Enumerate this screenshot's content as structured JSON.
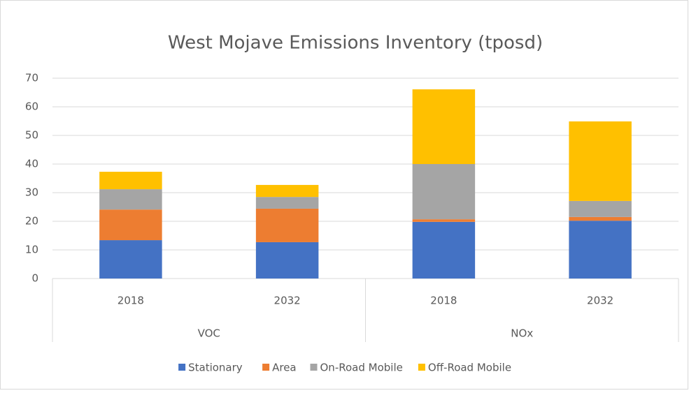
{
  "chart_data": {
    "type": "stacked_bar",
    "title": "West Mojave Emissions Inventory (tposd)",
    "groups": [
      {
        "label": "VOC",
        "categories": [
          "2018",
          "2032"
        ]
      },
      {
        "label": "NOx",
        "categories": [
          "2018",
          "2032"
        ]
      }
    ],
    "series": [
      {
        "name": "Stationary",
        "color": "#4472c4",
        "values": [
          13.4,
          12.7,
          19.8,
          20.2
        ]
      },
      {
        "name": "Area",
        "color": "#ed7d31",
        "values": [
          10.7,
          11.7,
          0.9,
          1.3
        ]
      },
      {
        "name": "On-Road Mobile",
        "color": "#a5a5a5",
        "values": [
          7.1,
          4.1,
          19.3,
          5.6
        ]
      },
      {
        "name": "Off-Road Mobile",
        "color": "#ffc000",
        "values": [
          6.1,
          4.2,
          26.1,
          27.8
        ]
      }
    ],
    "ylim": [
      0,
      70
    ],
    "yticks": [
      0,
      10,
      20,
      30,
      40,
      50,
      60,
      70
    ],
    "grid": true,
    "legend": "bottom"
  }
}
